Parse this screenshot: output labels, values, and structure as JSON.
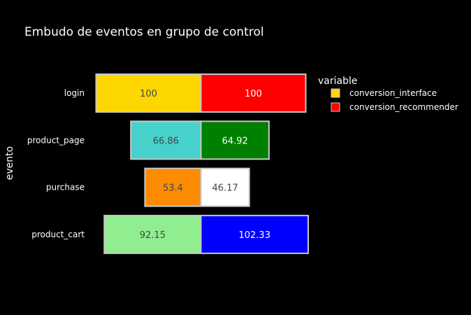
{
  "chart_data": {
    "type": "funnel",
    "title": "Embudo de eventos en grupo de control",
    "ylabel": "evento",
    "legend": {
      "title": "variable",
      "placement": "right"
    },
    "categories": [
      "login",
      "product_page",
      "purchase",
      "product_cart"
    ],
    "series": [
      {
        "name": "conversion_interface",
        "values": [
          100,
          66.86,
          53.4,
          92.15
        ],
        "labels": [
          "100",
          "66.86",
          "53.4",
          "92.15"
        ],
        "colors": [
          "#FFD700",
          "#48D1CC",
          "#FF8C00",
          "#90EE90"
        ],
        "label_colors": [
          "#444444",
          "#444444",
          "#444444",
          "#444444"
        ]
      },
      {
        "name": "conversion_recommender",
        "values": [
          100,
          64.92,
          46.17,
          102.33
        ],
        "labels": [
          "100",
          "64.92",
          "46.17",
          "102.33"
        ],
        "colors": [
          "#FF0000",
          "#008000",
          "#FFFFFF",
          "#0000FF"
        ],
        "label_colors": [
          "#FFFFFF",
          "#FFFFFF",
          "#444444",
          "#FFFFFF"
        ]
      }
    ],
    "legend_swatch_colors": [
      "#FFD700",
      "#FF0000"
    ]
  }
}
